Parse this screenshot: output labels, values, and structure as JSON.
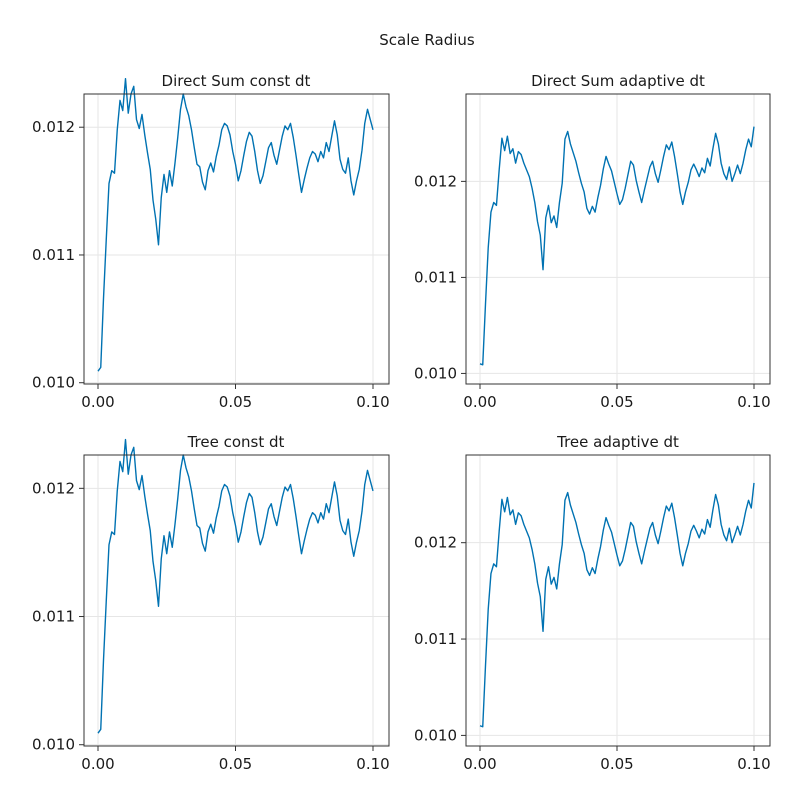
{
  "figure_title": "Scale Radius",
  "colors": {
    "series": "#0072b2"
  },
  "chart_data": [
    {
      "type": "line",
      "title": "Direct Sum const dt",
      "xlabel": "",
      "ylabel": "",
      "xlim": [
        0.0,
        0.1
      ],
      "ylim": [
        0.00999,
        0.01226
      ],
      "xticks": [
        0.0,
        0.05,
        0.1
      ],
      "xtick_labels": [
        "0.00",
        "0.05",
        "0.10"
      ],
      "yticks": [
        0.01,
        0.011,
        0.012
      ],
      "ytick_labels": [
        "0.010",
        "0.011",
        "0.012"
      ],
      "grid": true,
      "series": [
        {
          "x": [
            0.0,
            0.001,
            0.002,
            0.003,
            0.004,
            0.005,
            0.006,
            0.007,
            0.008,
            0.009,
            0.01,
            0.011,
            0.012,
            0.013,
            0.014,
            0.015,
            0.016,
            0.017,
            0.018,
            0.019,
            0.02,
            0.021,
            0.022,
            0.023,
            0.024,
            0.025,
            0.026,
            0.027,
            0.028,
            0.029,
            0.03,
            0.031,
            0.032,
            0.033,
            0.034,
            0.035,
            0.036,
            0.037,
            0.038,
            0.039,
            0.04,
            0.041,
            0.042,
            0.043,
            0.044,
            0.045,
            0.046,
            0.047,
            0.048,
            0.049,
            0.05,
            0.051,
            0.052,
            0.053,
            0.054,
            0.055,
            0.056,
            0.057,
            0.058,
            0.059,
            0.06,
            0.061,
            0.062,
            0.063,
            0.064,
            0.065,
            0.066,
            0.067,
            0.068,
            0.069,
            0.07,
            0.071,
            0.072,
            0.073,
            0.074,
            0.075,
            0.076,
            0.077,
            0.078,
            0.079,
            0.08,
            0.081,
            0.082,
            0.083,
            0.084,
            0.085,
            0.086,
            0.087,
            0.088,
            0.089,
            0.09,
            0.091,
            0.092,
            0.093,
            0.094,
            0.095,
            0.096,
            0.097,
            0.098,
            0.099,
            0.1
          ],
          "y": [
            0.01009,
            0.01012,
            0.01066,
            0.01112,
            0.01156,
            0.01166,
            0.01164,
            0.01198,
            0.01221,
            0.01213,
            0.01238,
            0.01211,
            0.01226,
            0.01232,
            0.01206,
            0.01199,
            0.0121,
            0.01194,
            0.0118,
            0.01167,
            0.01143,
            0.01128,
            0.01108,
            0.01145,
            0.01163,
            0.01149,
            0.01166,
            0.01154,
            0.01172,
            0.01192,
            0.01214,
            0.01226,
            0.01216,
            0.01209,
            0.01198,
            0.01184,
            0.01171,
            0.01169,
            0.01157,
            0.01151,
            0.01166,
            0.01172,
            0.01165,
            0.01177,
            0.01186,
            0.01198,
            0.01203,
            0.01201,
            0.01194,
            0.01181,
            0.01171,
            0.01158,
            0.01166,
            0.01178,
            0.01189,
            0.01196,
            0.01193,
            0.01181,
            0.01166,
            0.01156,
            0.01162,
            0.01173,
            0.01184,
            0.01188,
            0.01178,
            0.01171,
            0.01182,
            0.01193,
            0.01201,
            0.01198,
            0.01203,
            0.01192,
            0.01178,
            0.01163,
            0.01149,
            0.01159,
            0.01168,
            0.01176,
            0.01181,
            0.01179,
            0.01173,
            0.01181,
            0.01176,
            0.01188,
            0.01181,
            0.01193,
            0.01205,
            0.01194,
            0.01175,
            0.01167,
            0.01164,
            0.01176,
            0.01158,
            0.01147,
            0.01158,
            0.01167,
            0.01182,
            0.01203,
            0.01214,
            0.01206,
            0.01198
          ]
        }
      ]
    },
    {
      "type": "line",
      "title": "Direct Sum adaptive dt",
      "xlabel": "",
      "ylabel": "",
      "xlim": [
        0.0,
        0.1
      ],
      "ylim": [
        0.00989,
        0.01291
      ],
      "xticks": [
        0.0,
        0.05,
        0.1
      ],
      "xtick_labels": [
        "0.00",
        "0.05",
        "0.10"
      ],
      "yticks": [
        0.01,
        0.011,
        0.012
      ],
      "ytick_labels": [
        "0.010",
        "0.011",
        "0.012"
      ],
      "grid": true,
      "series": [
        {
          "x": [
            0.0,
            0.001,
            0.002,
            0.003,
            0.004,
            0.005,
            0.006,
            0.007,
            0.008,
            0.009,
            0.01,
            0.011,
            0.012,
            0.013,
            0.014,
            0.015,
            0.016,
            0.017,
            0.018,
            0.019,
            0.02,
            0.021,
            0.022,
            0.023,
            0.024,
            0.025,
            0.026,
            0.027,
            0.028,
            0.029,
            0.03,
            0.031,
            0.032,
            0.033,
            0.034,
            0.035,
            0.036,
            0.037,
            0.038,
            0.039,
            0.04,
            0.041,
            0.042,
            0.043,
            0.044,
            0.045,
            0.046,
            0.047,
            0.048,
            0.049,
            0.05,
            0.051,
            0.052,
            0.053,
            0.054,
            0.055,
            0.056,
            0.057,
            0.058,
            0.059,
            0.06,
            0.061,
            0.062,
            0.063,
            0.064,
            0.065,
            0.066,
            0.067,
            0.068,
            0.069,
            0.07,
            0.071,
            0.072,
            0.073,
            0.074,
            0.075,
            0.076,
            0.077,
            0.078,
            0.079,
            0.08,
            0.081,
            0.082,
            0.083,
            0.084,
            0.085,
            0.086,
            0.087,
            0.088,
            0.089,
            0.09,
            0.091,
            0.092,
            0.093,
            0.094,
            0.095,
            0.096,
            0.097,
            0.098,
            0.099,
            0.1
          ],
          "y": [
            0.0101,
            0.01009,
            0.01072,
            0.01131,
            0.01168,
            0.01178,
            0.01175,
            0.01212,
            0.01245,
            0.01232,
            0.01247,
            0.01229,
            0.01234,
            0.01219,
            0.01231,
            0.01228,
            0.01219,
            0.01212,
            0.01205,
            0.01193,
            0.01178,
            0.01158,
            0.01144,
            0.01108,
            0.01162,
            0.01175,
            0.01157,
            0.01164,
            0.01152,
            0.01178,
            0.01198,
            0.01244,
            0.01252,
            0.01239,
            0.0123,
            0.01221,
            0.01209,
            0.01198,
            0.01189,
            0.01172,
            0.01166,
            0.01174,
            0.01168,
            0.01183,
            0.01196,
            0.01213,
            0.01226,
            0.01218,
            0.01211,
            0.01199,
            0.01187,
            0.01176,
            0.01181,
            0.01193,
            0.01207,
            0.01221,
            0.01217,
            0.01201,
            0.01189,
            0.01178,
            0.01191,
            0.01203,
            0.01215,
            0.01221,
            0.01208,
            0.01199,
            0.01212,
            0.01226,
            0.01238,
            0.01233,
            0.01241,
            0.01226,
            0.01208,
            0.01189,
            0.01176,
            0.01189,
            0.01199,
            0.01212,
            0.01218,
            0.01212,
            0.01205,
            0.01214,
            0.01209,
            0.01224,
            0.01216,
            0.01234,
            0.0125,
            0.01239,
            0.01219,
            0.01208,
            0.01202,
            0.01215,
            0.012,
            0.01208,
            0.01217,
            0.01208,
            0.01219,
            0.01233,
            0.01244,
            0.01236,
            0.01257
          ]
        }
      ]
    },
    {
      "type": "line",
      "title": "Tree const dt",
      "xlabel": "",
      "ylabel": "",
      "xlim": [
        0.0,
        0.1
      ],
      "ylim": [
        0.00999,
        0.01226
      ],
      "xticks": [
        0.0,
        0.05,
        0.1
      ],
      "xtick_labels": [
        "0.00",
        "0.05",
        "0.10"
      ],
      "yticks": [
        0.01,
        0.011,
        0.012
      ],
      "ytick_labels": [
        "0.010",
        "0.011",
        "0.012"
      ],
      "grid": true,
      "series": [
        {
          "x": [
            0.0,
            0.001,
            0.002,
            0.003,
            0.004,
            0.005,
            0.006,
            0.007,
            0.008,
            0.009,
            0.01,
            0.011,
            0.012,
            0.013,
            0.014,
            0.015,
            0.016,
            0.017,
            0.018,
            0.019,
            0.02,
            0.021,
            0.022,
            0.023,
            0.024,
            0.025,
            0.026,
            0.027,
            0.028,
            0.029,
            0.03,
            0.031,
            0.032,
            0.033,
            0.034,
            0.035,
            0.036,
            0.037,
            0.038,
            0.039,
            0.04,
            0.041,
            0.042,
            0.043,
            0.044,
            0.045,
            0.046,
            0.047,
            0.048,
            0.049,
            0.05,
            0.051,
            0.052,
            0.053,
            0.054,
            0.055,
            0.056,
            0.057,
            0.058,
            0.059,
            0.06,
            0.061,
            0.062,
            0.063,
            0.064,
            0.065,
            0.066,
            0.067,
            0.068,
            0.069,
            0.07,
            0.071,
            0.072,
            0.073,
            0.074,
            0.075,
            0.076,
            0.077,
            0.078,
            0.079,
            0.08,
            0.081,
            0.082,
            0.083,
            0.084,
            0.085,
            0.086,
            0.087,
            0.088,
            0.089,
            0.09,
            0.091,
            0.092,
            0.093,
            0.094,
            0.095,
            0.096,
            0.097,
            0.098,
            0.099,
            0.1
          ],
          "y": [
            0.01009,
            0.01012,
            0.01066,
            0.01112,
            0.01156,
            0.01166,
            0.01164,
            0.01198,
            0.01221,
            0.01213,
            0.01238,
            0.01211,
            0.01226,
            0.01232,
            0.01206,
            0.01199,
            0.0121,
            0.01194,
            0.0118,
            0.01167,
            0.01143,
            0.01128,
            0.01108,
            0.01145,
            0.01163,
            0.01149,
            0.01166,
            0.01154,
            0.01172,
            0.01192,
            0.01214,
            0.01226,
            0.01216,
            0.01209,
            0.01198,
            0.01184,
            0.01171,
            0.01169,
            0.01157,
            0.01151,
            0.01166,
            0.01172,
            0.01165,
            0.01177,
            0.01186,
            0.01198,
            0.01203,
            0.01201,
            0.01194,
            0.01181,
            0.01171,
            0.01158,
            0.01166,
            0.01178,
            0.01189,
            0.01196,
            0.01193,
            0.01181,
            0.01166,
            0.01156,
            0.01162,
            0.01173,
            0.01184,
            0.01188,
            0.01178,
            0.01171,
            0.01182,
            0.01193,
            0.01201,
            0.01198,
            0.01203,
            0.01192,
            0.01178,
            0.01163,
            0.01149,
            0.01159,
            0.01168,
            0.01176,
            0.01181,
            0.01179,
            0.01173,
            0.01181,
            0.01176,
            0.01188,
            0.01181,
            0.01193,
            0.01205,
            0.01194,
            0.01175,
            0.01167,
            0.01164,
            0.01176,
            0.01158,
            0.01147,
            0.01158,
            0.01167,
            0.01182,
            0.01203,
            0.01214,
            0.01206,
            0.01198
          ]
        }
      ]
    },
    {
      "type": "line",
      "title": "Tree adaptive dt",
      "xlabel": "",
      "ylabel": "",
      "xlim": [
        0.0,
        0.1
      ],
      "ylim": [
        0.00989,
        0.01291
      ],
      "xticks": [
        0.0,
        0.05,
        0.1
      ],
      "xtick_labels": [
        "0.00",
        "0.05",
        "0.10"
      ],
      "yticks": [
        0.01,
        0.011,
        0.012
      ],
      "ytick_labels": [
        "0.010",
        "0.011",
        "0.012"
      ],
      "grid": true,
      "series": [
        {
          "x": [
            0.0,
            0.001,
            0.002,
            0.003,
            0.004,
            0.005,
            0.006,
            0.007,
            0.008,
            0.009,
            0.01,
            0.011,
            0.012,
            0.013,
            0.014,
            0.015,
            0.016,
            0.017,
            0.018,
            0.019,
            0.02,
            0.021,
            0.022,
            0.023,
            0.024,
            0.025,
            0.026,
            0.027,
            0.028,
            0.029,
            0.03,
            0.031,
            0.032,
            0.033,
            0.034,
            0.035,
            0.036,
            0.037,
            0.038,
            0.039,
            0.04,
            0.041,
            0.042,
            0.043,
            0.044,
            0.045,
            0.046,
            0.047,
            0.048,
            0.049,
            0.05,
            0.051,
            0.052,
            0.053,
            0.054,
            0.055,
            0.056,
            0.057,
            0.058,
            0.059,
            0.06,
            0.061,
            0.062,
            0.063,
            0.064,
            0.065,
            0.066,
            0.067,
            0.068,
            0.069,
            0.07,
            0.071,
            0.072,
            0.073,
            0.074,
            0.075,
            0.076,
            0.077,
            0.078,
            0.079,
            0.08,
            0.081,
            0.082,
            0.083,
            0.084,
            0.085,
            0.086,
            0.087,
            0.088,
            0.089,
            0.09,
            0.091,
            0.092,
            0.093,
            0.094,
            0.095,
            0.096,
            0.097,
            0.098,
            0.099,
            0.1
          ],
          "y": [
            0.0101,
            0.01009,
            0.01072,
            0.01131,
            0.01168,
            0.01178,
            0.01175,
            0.01212,
            0.01245,
            0.01232,
            0.01247,
            0.01229,
            0.01234,
            0.01219,
            0.01231,
            0.01228,
            0.01219,
            0.01212,
            0.01205,
            0.01193,
            0.01178,
            0.01158,
            0.01144,
            0.01108,
            0.01162,
            0.01175,
            0.01157,
            0.01164,
            0.01152,
            0.01178,
            0.01198,
            0.01244,
            0.01252,
            0.01239,
            0.0123,
            0.01221,
            0.01209,
            0.01198,
            0.01189,
            0.01172,
            0.01166,
            0.01174,
            0.01168,
            0.01183,
            0.01196,
            0.01213,
            0.01226,
            0.01218,
            0.01211,
            0.01199,
            0.01187,
            0.01176,
            0.01181,
            0.01193,
            0.01207,
            0.01221,
            0.01217,
            0.01201,
            0.01189,
            0.01178,
            0.01191,
            0.01203,
            0.01215,
            0.01221,
            0.01208,
            0.01199,
            0.01212,
            0.01226,
            0.01238,
            0.01233,
            0.01241,
            0.01226,
            0.01208,
            0.01189,
            0.01176,
            0.01189,
            0.01199,
            0.01212,
            0.01218,
            0.01212,
            0.01205,
            0.01214,
            0.01209,
            0.01224,
            0.01216,
            0.01234,
            0.0125,
            0.01239,
            0.01219,
            0.01208,
            0.01202,
            0.01215,
            0.012,
            0.01208,
            0.01217,
            0.01208,
            0.01219,
            0.01233,
            0.01244,
            0.01236,
            0.01262
          ]
        }
      ]
    }
  ]
}
